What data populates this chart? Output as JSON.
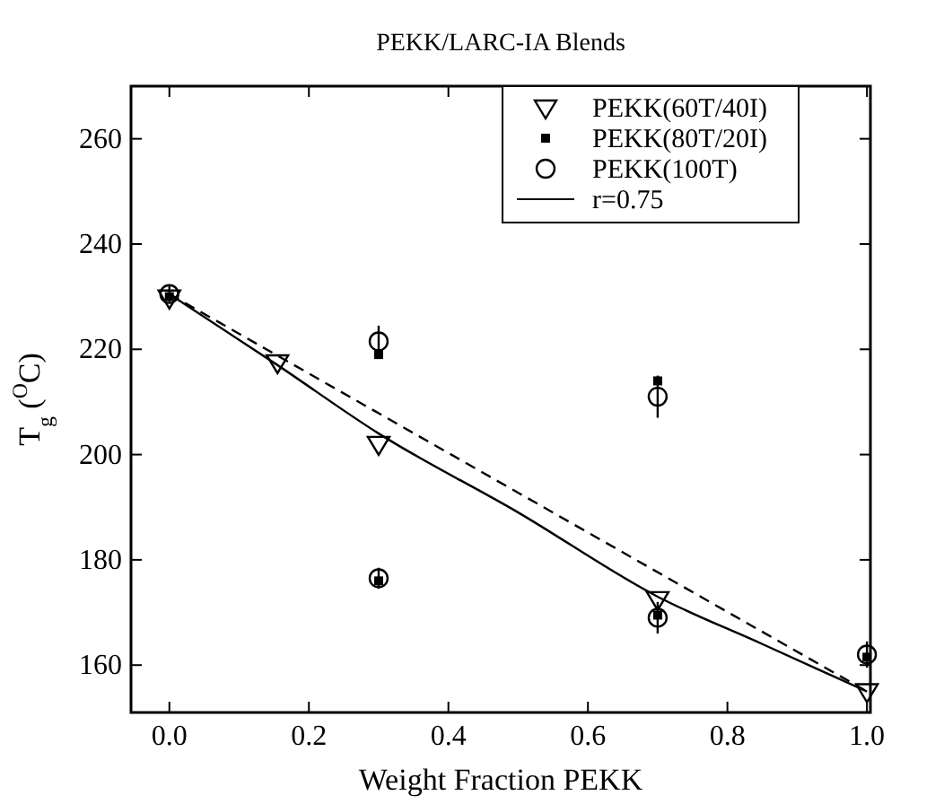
{
  "chart_data": {
    "type": "scatter",
    "title": "PEKK/LARC-IA Blends",
    "xlabel": "Weight Fraction PEKK",
    "ylabel": "T$_{g}$ ($^{O}$C)",
    "xlim": [
      -0.055,
      1.005
    ],
    "ylim": [
      151,
      270
    ],
    "xticks": [
      {
        "value": 0,
        "label": "0.0"
      },
      {
        "value": 0.2,
        "label": "0.2"
      },
      {
        "value": 0.4,
        "label": "0.4"
      },
      {
        "value": 0.6,
        "label": "0.6"
      },
      {
        "value": 0.8,
        "label": "0.8"
      },
      {
        "value": 1,
        "label": "1.0"
      }
    ],
    "yticks": [
      160,
      180,
      200,
      220,
      240,
      260
    ],
    "legend": "top right",
    "grid": false,
    "series": [
      {
        "name": "PEKK(60T/40I)",
        "marker": "triangle",
        "color": "#000000",
        "x": [
          0,
          0.155,
          0.3,
          0.7,
          1.0
        ],
        "values": [
          229.8,
          217.5,
          202,
          172.5,
          155
        ]
      },
      {
        "name": "PEKK(80T/20I)",
        "marker": "square",
        "color": "#000000",
        "x": [
          0,
          0.3,
          0.3,
          0.7,
          0.7,
          1.0
        ],
        "values": [
          230,
          219,
          176,
          214,
          169.5,
          161.5
        ]
      },
      {
        "name": "PEKK(100T)",
        "marker": "circle",
        "color": "#000000",
        "x": [
          0,
          0.3,
          0.3,
          0.7,
          0.7,
          1.0
        ],
        "values": [
          230.5,
          221.5,
          176.5,
          211,
          169,
          162
        ],
        "errors": [
          1.5,
          3,
          2,
          4,
          3,
          2.5
        ]
      },
      {
        "name": "r=0.75",
        "type": "line",
        "marker": "none",
        "line_style": "solid",
        "color": "#000000",
        "x": [
          0,
          0.155,
          0.3,
          0.5,
          0.7,
          0.85,
          1.0
        ],
        "values": [
          230.5,
          217,
          204,
          189,
          173,
          164,
          155
        ]
      },
      {
        "type": "line",
        "marker": "none",
        "line_style": "dashed",
        "color": "#000000",
        "x": [
          0,
          1.0
        ],
        "values": [
          230.5,
          155
        ]
      }
    ]
  }
}
